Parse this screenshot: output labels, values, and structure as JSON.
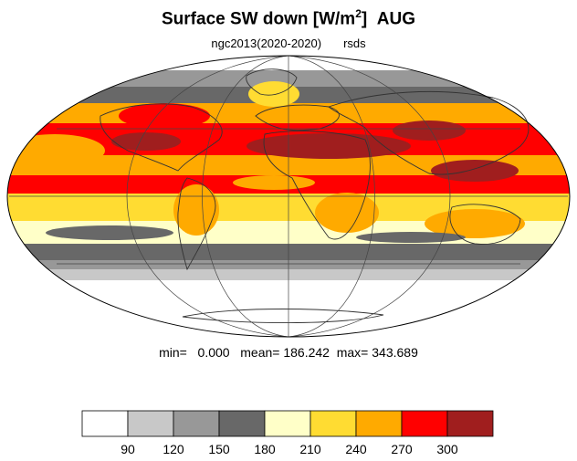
{
  "title": {
    "main": "Surface SW down [W/m",
    "sup": "2",
    "close": "]",
    "month": "AUG"
  },
  "subtitle": {
    "run": "ngc2013(2020-2020)",
    "variable": "rsds"
  },
  "stats": {
    "min_label": "min=",
    "min": "0.000",
    "mean_label": "mean=",
    "mean": "186.242",
    "max_label": "max=",
    "max": "343.689"
  },
  "colorbar": {
    "levels": [
      "90",
      "120",
      "150",
      "180",
      "210",
      "240",
      "270",
      "300"
    ],
    "colors": [
      "#ffffff",
      "#c8c8c8",
      "#989898",
      "#686868",
      "#ffffc8",
      "#ffdc32",
      "#ffaa00",
      "#ff0000",
      "#a01e1e"
    ]
  }
}
